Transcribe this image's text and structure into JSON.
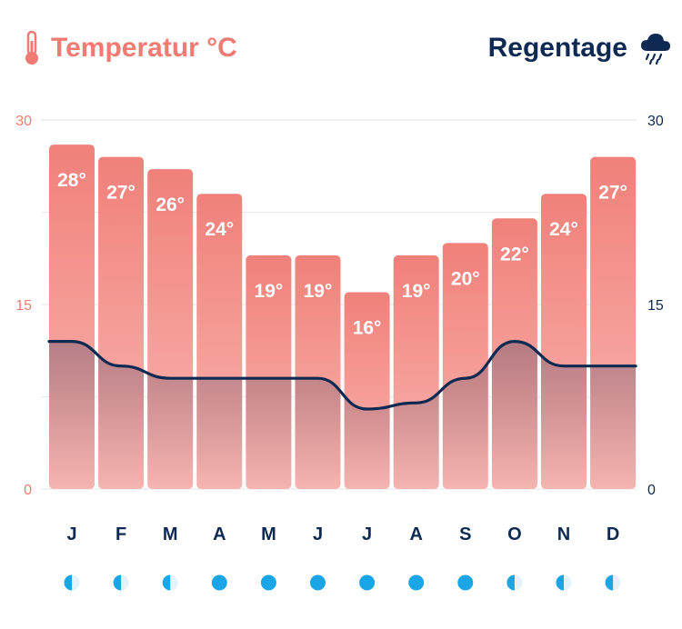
{
  "header": {
    "left_title": "Temperatur °C",
    "right_title": "Regentage",
    "left_icon": "thermometer-icon",
    "right_icon": "rain-cloud-icon"
  },
  "colors": {
    "temperature": "#f07b72",
    "bar_top": "#f0807a",
    "bar_bottom": "#fbb7b2",
    "rain_line": "#0e2a52",
    "grid": "#e9ebef",
    "water": "#1aa5e6"
  },
  "chart_data": {
    "type": "bar",
    "categories": [
      "J",
      "F",
      "M",
      "A",
      "M",
      "J",
      "J",
      "A",
      "S",
      "O",
      "N",
      "D"
    ],
    "series": [
      {
        "name": "Temperatur °C",
        "type": "bar",
        "axis": "left",
        "values": [
          28,
          27,
          26,
          24,
          19,
          19,
          16,
          19,
          20,
          22,
          24,
          27
        ],
        "labels": [
          "28°",
          "27°",
          "26°",
          "24°",
          "19°",
          "19°",
          "16°",
          "19°",
          "20°",
          "22°",
          "24°",
          "27°"
        ]
      },
      {
        "name": "Regentage",
        "type": "line",
        "axis": "right",
        "values": [
          12,
          10,
          9,
          9,
          9,
          9,
          6.5,
          7,
          9,
          12,
          10,
          10
        ]
      }
    ],
    "ylim_left": [
      0,
      30
    ],
    "ylim_right": [
      0,
      30
    ],
    "yticks_left": [
      "0",
      "15",
      "30"
    ],
    "yticks_right": [
      "0",
      "15",
      "30"
    ],
    "water_temperature_icons": [
      "half",
      "half",
      "half",
      "full",
      "full",
      "full",
      "full",
      "full",
      "full",
      "half",
      "half",
      "half"
    ],
    "grid": true
  }
}
